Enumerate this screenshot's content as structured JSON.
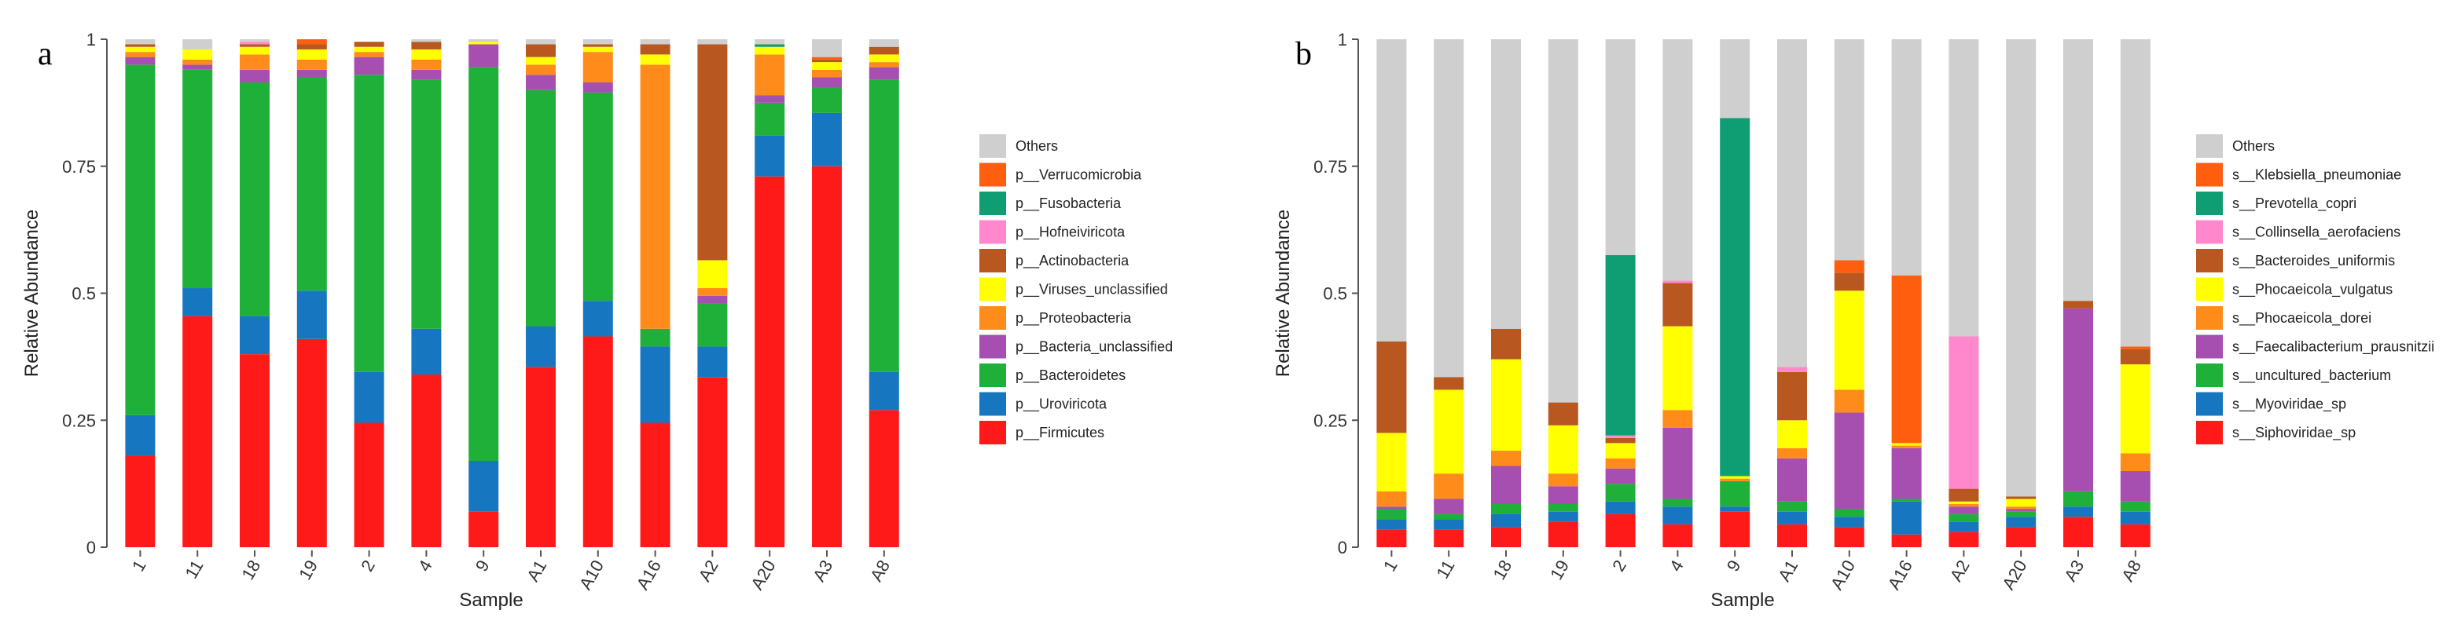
{
  "chart_data": [
    {
      "panel": "a",
      "type": "bar",
      "stacked": true,
      "title": "",
      "xlabel": "Sample",
      "ylabel": "Relative Abundance",
      "ylim": [
        0,
        1
      ],
      "yticks": [
        "0",
        "0.25",
        "0.5",
        "0.75",
        "1"
      ],
      "categories": [
        "1",
        "11",
        "18",
        "19",
        "2",
        "4",
        "9",
        "A1",
        "A10",
        "A16",
        "A2",
        "A20",
        "A3",
        "A8"
      ],
      "legend": [
        "Others",
        "p__Verrucomicrobia",
        "p__Fusobacteria",
        "p__Hofneiviricota",
        "p__Actinobacteria",
        "p__Viruses_unclassified",
        "p__Proteobacteria",
        "p__Bacteria_unclassified",
        "p__Bacteroidetes",
        "p__Uroviricota",
        "p__Firmicutes"
      ],
      "series": [
        {
          "name": "p__Firmicutes",
          "color": "#ff1a1a",
          "values": [
            0.18,
            0.455,
            0.38,
            0.41,
            0.245,
            0.34,
            0.07,
            0.355,
            0.415,
            0.245,
            0.335,
            0.73,
            0.75,
            0.27
          ]
        },
        {
          "name": "p__Uroviricota",
          "color": "#1677c0",
          "values": [
            0.08,
            0.055,
            0.075,
            0.095,
            0.1,
            0.09,
            0.1,
            0.08,
            0.07,
            0.15,
            0.06,
            0.08,
            0.105,
            0.075
          ]
        },
        {
          "name": "p__Bacteroidetes",
          "color": "#1fb03a",
          "values": [
            0.69,
            0.43,
            0.46,
            0.42,
            0.585,
            0.49,
            0.775,
            0.465,
            0.41,
            0.035,
            0.085,
            0.065,
            0.05,
            0.575
          ]
        },
        {
          "name": "p__Bacteria_unclassified",
          "color": "#a64fb0",
          "values": [
            0.015,
            0.01,
            0.025,
            0.015,
            0.035,
            0.02,
            0.045,
            0.03,
            0.02,
            0,
            0.015,
            0.015,
            0.02,
            0.025
          ]
        },
        {
          "name": "p__Proteobacteria",
          "color": "#ff8c1a",
          "values": [
            0.01,
            0.01,
            0.03,
            0.02,
            0.01,
            0.02,
            0,
            0.02,
            0.06,
            0.52,
            0.015,
            0.08,
            0.015,
            0.01
          ]
        },
        {
          "name": "p__Viruses_unclassified",
          "color": "#ffff00",
          "values": [
            0.01,
            0.02,
            0.015,
            0.02,
            0.01,
            0.02,
            0.005,
            0.015,
            0.01,
            0.02,
            0.055,
            0.015,
            0.015,
            0.015
          ]
        },
        {
          "name": "p__Actinobacteria",
          "color": "#b85820",
          "values": [
            0.005,
            0,
            0.005,
            0.01,
            0.01,
            0.015,
            0,
            0.025,
            0.005,
            0.02,
            0.425,
            0,
            0.005,
            0.015
          ]
        },
        {
          "name": "p__Hofneiviricota",
          "color": "#ff88cc",
          "values": [
            0,
            0,
            0.005,
            0,
            0,
            0,
            0,
            0,
            0,
            0,
            0,
            0,
            0,
            0
          ]
        },
        {
          "name": "p__Fusobacteria",
          "color": "#0f9d74",
          "values": [
            0,
            0,
            0,
            0,
            0,
            0,
            0,
            0,
            0,
            0,
            0,
            0.005,
            0,
            0
          ]
        },
        {
          "name": "p__Verrucomicrobia",
          "color": "#ff5e0e",
          "values": [
            0,
            0,
            0,
            0.01,
            0,
            0,
            0,
            0,
            0,
            0,
            0,
            0,
            0.005,
            0
          ]
        },
        {
          "name": "Others",
          "color": "#cfcfcf",
          "values": [
            0.01,
            0.02,
            0.005,
            0,
            0,
            0.005,
            0.005,
            0.01,
            0.01,
            0.01,
            0.01,
            0.01,
            0.035,
            0.015
          ]
        }
      ]
    },
    {
      "panel": "b",
      "type": "bar",
      "stacked": true,
      "title": "",
      "xlabel": "Sample",
      "ylabel": "Relative Abundance",
      "ylim": [
        0,
        1
      ],
      "yticks": [
        "0",
        "0.25",
        "0.5",
        "0.75",
        "1"
      ],
      "categories": [
        "1",
        "11",
        "18",
        "19",
        "2",
        "4",
        "9",
        "A1",
        "A10",
        "A16",
        "A2",
        "A20",
        "A3",
        "A8"
      ],
      "legend": [
        "Others",
        "s__Klebsiella_pneumoniae",
        "s__Prevotella_copri",
        "s__Collinsella_aerofaciens",
        "s__Bacteroides_uniformis",
        "s__Phocaeicola_vulgatus",
        "s__Phocaeicola_dorei",
        "s__Faecalibacterium_prausnitzii",
        "s__uncultured_bacterium",
        "s__Myoviridae_sp",
        "s__Siphoviridae_sp"
      ],
      "series": [
        {
          "name": "s__Siphoviridae_sp",
          "color": "#ff1a1a",
          "values": [
            0.035,
            0.035,
            0.04,
            0.05,
            0.065,
            0.045,
            0.07,
            0.045,
            0.04,
            0.025,
            0.03,
            0.04,
            0.06,
            0.045
          ]
        },
        {
          "name": "s__Myoviridae_sp",
          "color": "#1677c0",
          "values": [
            0.02,
            0.02,
            0.025,
            0.02,
            0.025,
            0.035,
            0.01,
            0.025,
            0.02,
            0.065,
            0.02,
            0.02,
            0.02,
            0.025
          ]
        },
        {
          "name": "s__uncultured_bacterium",
          "color": "#1fb03a",
          "values": [
            0.02,
            0.01,
            0.02,
            0.015,
            0.035,
            0.015,
            0.05,
            0.02,
            0.015,
            0.005,
            0.015,
            0.01,
            0.03,
            0.02
          ]
        },
        {
          "name": "s__Faecalibacterium_prausnitzii",
          "color": "#a64fb0",
          "values": [
            0.005,
            0.03,
            0.075,
            0.035,
            0.03,
            0.14,
            0,
            0.085,
            0.19,
            0.1,
            0.015,
            0.005,
            0.36,
            0.06
          ]
        },
        {
          "name": "s__Phocaeicola_dorei",
          "color": "#ff8c1a",
          "values": [
            0.03,
            0.05,
            0.03,
            0.025,
            0.02,
            0.035,
            0.005,
            0.02,
            0.045,
            0.005,
            0.005,
            0.005,
            0,
            0.035
          ]
        },
        {
          "name": "s__Phocaeicola_vulgatus",
          "color": "#ffff00",
          "values": [
            0.115,
            0.165,
            0.18,
            0.095,
            0.03,
            0.165,
            0.005,
            0.055,
            0.195,
            0.005,
            0.005,
            0.015,
            0,
            0.175
          ]
        },
        {
          "name": "s__Bacteroides_uniformis",
          "color": "#b85820",
          "values": [
            0.18,
            0.025,
            0.06,
            0.045,
            0.01,
            0.085,
            0,
            0.095,
            0.035,
            0,
            0.025,
            0.005,
            0.015,
            0.03
          ]
        },
        {
          "name": "s__Collinsella_aerofaciens",
          "color": "#ff88cc",
          "values": [
            0,
            0,
            0,
            0,
            0.005,
            0.005,
            0,
            0.01,
            0,
            0,
            0.3,
            0,
            0,
            0
          ]
        },
        {
          "name": "s__Prevotella_copri",
          "color": "#0f9d74",
          "values": [
            0,
            0,
            0,
            0,
            0.355,
            0,
            0.705,
            0,
            0,
            0,
            0,
            0,
            0,
            0
          ]
        },
        {
          "name": "s__Klebsiella_pneumoniae",
          "color": "#ff5e0e",
          "values": [
            0,
            0,
            0,
            0,
            0,
            0,
            0,
            0,
            0.025,
            0.33,
            0,
            0,
            0,
            0.005
          ]
        },
        {
          "name": "Others",
          "color": "#cfcfcf",
          "values": [
            0.595,
            0.665,
            0.57,
            0.715,
            0.425,
            0.475,
            0.155,
            0.645,
            0.435,
            0.465,
            0.585,
            0.9,
            0.515,
            0.605
          ]
        }
      ]
    }
  ]
}
